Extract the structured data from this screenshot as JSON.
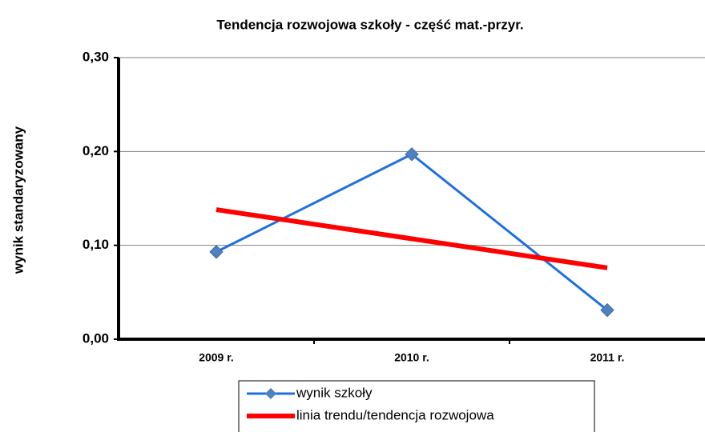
{
  "chart_data": {
    "type": "line",
    "title": "Tendencja rozwojowa szkoły - część mat.-przyr.",
    "y_label": "wynik standaryzowany",
    "categories": [
      "2009 r.",
      "2010 r.",
      "2011 r."
    ],
    "series": [
      {
        "name": "wynik szkoły",
        "color": "#1f6fe0",
        "marker_color": "#4f81bd",
        "values": [
          0.093,
          0.197,
          0.031
        ]
      },
      {
        "name": "linia trendu/tendencja rozwojowa",
        "color": "#ff0000",
        "values": [
          0.138,
          0.107,
          0.076
        ]
      }
    ],
    "ylim": [
      0,
      0.3
    ],
    "yticks": [
      {
        "value": 0,
        "label": "0,00"
      },
      {
        "value": 0.1,
        "label": "0,10"
      },
      {
        "value": 0.2,
        "label": "0,20"
      },
      {
        "value": 0.3,
        "label": "0,30"
      }
    ],
    "grid": true,
    "legend": "bottom"
  }
}
